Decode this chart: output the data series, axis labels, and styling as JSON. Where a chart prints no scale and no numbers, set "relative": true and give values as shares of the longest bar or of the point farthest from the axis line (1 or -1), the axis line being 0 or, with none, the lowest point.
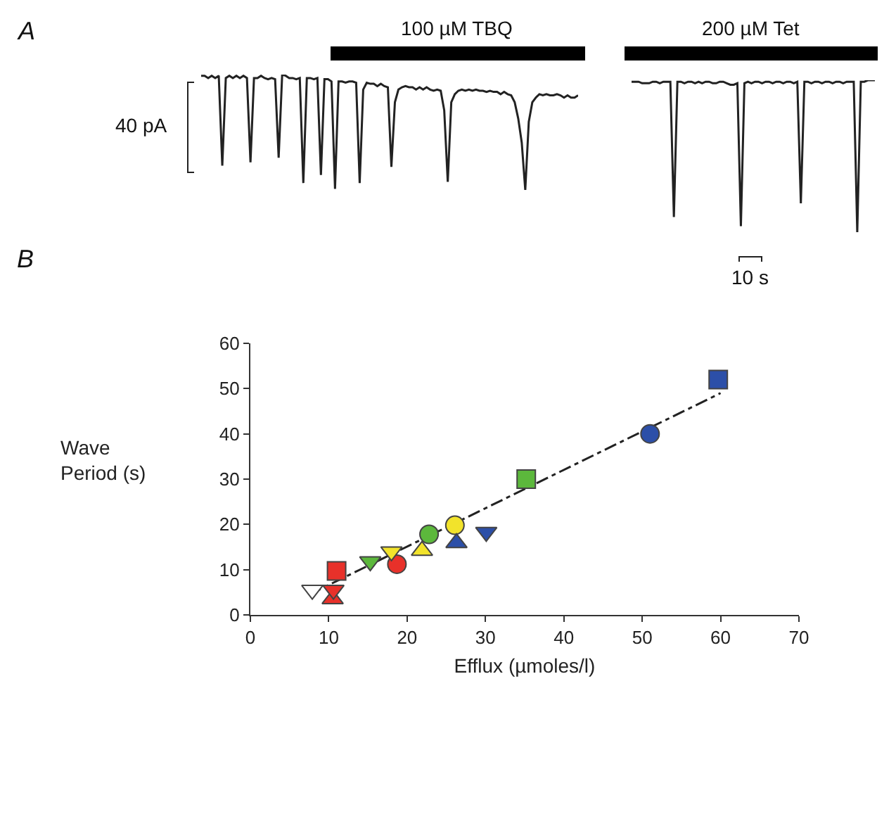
{
  "chart_data": [
    {
      "type": "line",
      "relative": true,
      "categories": [
        null,
        null,
        null,
        null,
        null,
        null,
        null,
        null,
        null,
        null,
        null,
        null,
        null,
        null,
        null,
        null,
        null,
        null,
        null,
        null,
        null,
        null,
        null,
        null,
        null,
        null,
        null,
        null,
        null,
        null,
        null,
        null,
        null,
        null,
        null,
        null,
        null,
        null,
        null,
        null,
        null,
        null,
        null,
        null,
        null,
        null,
        null,
        null,
        null,
        null,
        null,
        null,
        null,
        null,
        null,
        null,
        null,
        null,
        null,
        null,
        null,
        null,
        null,
        null,
        null,
        null,
        null,
        null,
        null,
        null,
        null,
        null,
        null,
        null,
        null,
        null,
        null,
        null,
        null,
        null,
        null,
        null,
        null,
        null,
        null,
        null,
        null,
        null,
        null,
        null,
        null,
        null,
        null,
        null,
        null,
        null,
        null,
        null,
        null,
        null,
        null,
        null,
        null,
        null,
        null,
        null,
        null,
        null
      ],
      "series": [
        {
          "color": "#222222",
          "values": [
            0.99,
            0.99,
            0.97,
            0.99,
            0.97,
            0.99,
            0.21,
            0.97,
            0.99,
            0.97,
            0.99,
            0.97,
            0.99,
            0.97,
            0.24,
            0.97,
            0.97,
            0.99,
            0.97,
            0.96,
            0.97,
            0.96,
            0.28,
            1,
            0.99,
            0.97,
            0.97,
            0.96,
            0.97,
            0.06,
            0.97,
            0.97,
            0.96,
            0.97,
            0.13,
            0.96,
            0.96,
            0.94,
            0.01,
            0.94,
            0.94,
            0.93,
            0.94,
            0.94,
            0.93,
            0.06,
            0.87,
            0.93,
            0.92,
            0.92,
            0.9,
            0.92,
            0.9,
            0.89,
            0.2,
            0.76,
            0.87,
            0.89,
            0.9,
            0.89,
            0.89,
            0.87,
            0.89,
            0.87,
            0.89,
            0.87,
            0.86,
            0.87,
            0.86,
            0.69,
            0.07,
            0.76,
            0.83,
            0.86,
            0.87,
            0.86,
            0.87,
            0.86,
            0.87,
            0.86,
            0.86,
            0.85,
            0.86,
            0.85,
            0.85,
            0.83,
            0.85,
            0.83,
            0.82,
            0.76,
            0.62,
            0.41,
            0,
            0.59,
            0.76,
            0.8,
            0.83,
            0.82,
            0.83,
            0.82,
            0.82,
            0.83,
            0.82,
            0.8,
            0.82,
            0.8,
            0.8,
            0.82
          ]
        }
      ],
      "annotations": [
        "A",
        "100 µM TBQ",
        "40 pA"
      ]
    },
    {
      "type": "line",
      "relative": true,
      "categories": [
        null,
        null,
        null,
        null,
        null,
        null,
        null,
        null,
        null,
        null,
        null,
        null,
        null,
        null,
        null,
        null,
        null,
        null,
        null,
        null,
        null,
        null,
        null,
        null,
        null,
        null,
        null,
        null,
        null,
        null,
        null,
        null,
        null,
        null,
        null,
        null,
        null,
        null,
        null,
        null,
        null,
        null,
        null,
        null,
        null,
        null,
        null,
        null,
        null,
        null,
        null,
        null,
        null,
        null,
        null,
        null,
        null,
        null,
        null,
        null,
        null,
        null,
        null,
        null,
        null,
        null,
        null,
        null,
        null,
        null
      ],
      "series": [
        {
          "color": "#222222",
          "values": [
            0.99,
            0.99,
            0.99,
            0.98,
            0.98,
            0.98,
            0.99,
            0.99,
            0.98,
            0.99,
            0.99,
            0.99,
            0.1,
            0.99,
            0.99,
            0.98,
            0.99,
            0.99,
            0.98,
            0.99,
            0.98,
            0.99,
            0.99,
            0.98,
            0.98,
            0.99,
            0.99,
            0.98,
            0.97,
            0.97,
            0.98,
            0.04,
            0.98,
            0.99,
            0.98,
            0.99,
            0.99,
            0.98,
            0.99,
            0.99,
            0.98,
            0.99,
            0.99,
            0.98,
            0.99,
            0.99,
            0.98,
            0.99,
            0.19,
            0.99,
            0.99,
            0.98,
            0.99,
            0.99,
            0.98,
            0.99,
            0.99,
            0.98,
            0.99,
            0.99,
            0.98,
            0.99,
            0.99,
            0.99,
            0,
            0.99,
            0.99,
            1,
            1,
            1
          ]
        }
      ],
      "annotations": [
        "200 µM Tet",
        "10 s"
      ]
    },
    {
      "type": "scatter",
      "xlabel": "Efflux (µmoles/l)",
      "ylabel": "Wave\nPeriod (s)",
      "xlim": [
        0,
        70
      ],
      "xticks": [
        0,
        10,
        20,
        30,
        40,
        50,
        60,
        70
      ],
      "ylim": [
        0,
        60
      ],
      "yticks": [
        0,
        10,
        20,
        30,
        40,
        50,
        60
      ],
      "series": [
        {
          "type": "line",
          "line_style": "dashed",
          "color": "#222222",
          "x": [
            7.5,
            60
          ],
          "values": [
            4.5,
            49
          ]
        },
        {
          "marker": "square",
          "x": [
            11,
            35.2,
            59.7
          ],
          "values": [
            9.7,
            30,
            52
          ],
          "colors": [
            "#e8312a",
            "#5cb83c",
            "#2c4fa8"
          ]
        },
        {
          "marker": "circle",
          "x": [
            18.7,
            22.8,
            26.1,
            51
          ],
          "values": [
            11.2,
            17.8,
            19.8,
            40
          ],
          "colors": [
            "#e8312a",
            "#5cb83c",
            "#f2e32b",
            "#2c4fa8"
          ]
        },
        {
          "marker": "triangle",
          "x": [
            10.5,
            21.9,
            26.3
          ],
          "values": [
            3.5,
            14.2,
            15.9
          ],
          "colors": [
            "#e8312a",
            "#f2e32b",
            "#2c4fa8"
          ]
        },
        {
          "marker": "triangle-down",
          "x": [
            7.9,
            10.6,
            15.3,
            18,
            30.1
          ],
          "values": [
            5.5,
            5.5,
            11.8,
            14,
            18.3
          ],
          "colors": [
            "#ffffff",
            "#e8312a",
            "#5cb83c",
            "#f2e32b",
            "#2c4fa8"
          ]
        }
      ],
      "annotations": [
        "B"
      ]
    }
  ]
}
